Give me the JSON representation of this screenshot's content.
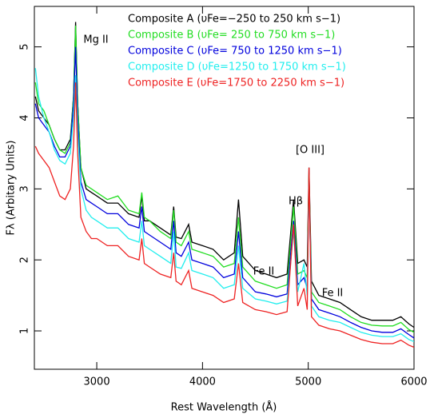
{
  "chart_data": {
    "type": "line",
    "xlabel": "Rest Wavelength (Å)",
    "ylabel": "Fλ (Arbitary Units)",
    "annotations": [
      "Mg II",
      "Fe II",
      "Hβ",
      "[O III]",
      "Fe II"
    ],
    "x": [
      2420,
      2450,
      2500,
      2550,
      2600,
      2650,
      2700,
      2750,
      2780,
      2800,
      2820,
      2850,
      2900,
      2950,
      3000,
      3100,
      3200,
      3300,
      3400,
      3426,
      3450,
      3500,
      3600,
      3700,
      3727,
      3750,
      3800,
      3869,
      3900,
      4000,
      4100,
      4200,
      4300,
      4340,
      4380,
      4500,
      4600,
      4700,
      4800,
      4861,
      4900,
      4959,
      4990,
      5007,
      5030,
      5100,
      5200,
      5300,
      5400,
      5500,
      5600,
      5700,
      5800,
      5876,
      5950,
      6000
    ],
    "series": [
      {
        "name": "Composite A (υFe=−250 to  250 km s−1)",
        "color": "#000000",
        "values": [
          4.3,
          4.1,
          4.0,
          3.9,
          3.7,
          3.55,
          3.55,
          3.7,
          4.3,
          5.35,
          4.2,
          3.3,
          3.0,
          2.95,
          2.9,
          2.8,
          2.8,
          2.65,
          2.6,
          2.9,
          2.55,
          2.55,
          2.45,
          2.35,
          2.75,
          2.32,
          2.3,
          2.5,
          2.25,
          2.2,
          2.15,
          2.0,
          2.1,
          2.85,
          2.05,
          1.85,
          1.8,
          1.75,
          1.8,
          2.85,
          1.95,
          2.0,
          1.9,
          3.3,
          1.7,
          1.5,
          1.45,
          1.4,
          1.3,
          1.2,
          1.15,
          1.15,
          1.15,
          1.2,
          1.1,
          1.05
        ]
      },
      {
        "name": "Composite B (υFe= 250 to  750 km s−1)",
        "color": "#22dd22",
        "values": [
          4.5,
          4.2,
          4.1,
          3.9,
          3.7,
          3.55,
          3.5,
          3.65,
          4.3,
          5.3,
          4.2,
          3.3,
          3.05,
          3.0,
          2.95,
          2.85,
          2.9,
          2.7,
          2.65,
          2.95,
          2.6,
          2.55,
          2.4,
          2.3,
          2.7,
          2.25,
          2.2,
          2.4,
          2.15,
          2.1,
          2.05,
          1.9,
          1.95,
          2.6,
          1.9,
          1.7,
          1.65,
          1.6,
          1.65,
          2.75,
          1.8,
          1.85,
          1.75,
          3.2,
          1.55,
          1.4,
          1.35,
          1.3,
          1.2,
          1.12,
          1.08,
          1.07,
          1.07,
          1.12,
          1.02,
          0.98
        ]
      },
      {
        "name": "Composite C (υFe= 750 to 1250 km s−1)",
        "color": "#0000dd",
        "values": [
          4.2,
          4.0,
          3.9,
          3.8,
          3.6,
          3.45,
          3.45,
          3.6,
          4.2,
          5.0,
          4.0,
          3.1,
          2.85,
          2.8,
          2.75,
          2.65,
          2.65,
          2.5,
          2.45,
          2.75,
          2.4,
          2.35,
          2.25,
          2.15,
          2.55,
          2.1,
          2.05,
          2.25,
          2.0,
          1.95,
          1.9,
          1.75,
          1.8,
          2.4,
          1.75,
          1.55,
          1.52,
          1.48,
          1.52,
          2.55,
          1.65,
          1.75,
          1.6,
          3.1,
          1.45,
          1.3,
          1.25,
          1.2,
          1.12,
          1.05,
          1.0,
          0.98,
          0.98,
          1.03,
          0.95,
          0.9
        ]
      },
      {
        "name": "Composite D (υFe=1250 to 1750 km s−1)",
        "color": "#22eeee",
        "values": [
          4.7,
          4.3,
          4.0,
          3.8,
          3.55,
          3.4,
          3.35,
          3.5,
          4.0,
          4.6,
          3.8,
          3.0,
          2.7,
          2.6,
          2.55,
          2.45,
          2.45,
          2.3,
          2.25,
          2.55,
          2.2,
          2.15,
          2.05,
          1.95,
          2.4,
          1.9,
          1.88,
          2.1,
          1.85,
          1.8,
          1.75,
          1.6,
          1.65,
          2.2,
          1.6,
          1.45,
          1.42,
          1.38,
          1.42,
          2.4,
          1.55,
          1.95,
          1.5,
          3.1,
          1.35,
          1.2,
          1.15,
          1.12,
          1.05,
          0.98,
          0.94,
          0.92,
          0.92,
          0.96,
          0.88,
          0.85
        ]
      },
      {
        "name": "Composite E (υFe=1750 to 2250 km s−1)",
        "color": "#ee2222",
        "values": [
          3.6,
          3.5,
          3.4,
          3.3,
          3.1,
          2.9,
          2.85,
          3.0,
          3.6,
          4.5,
          3.5,
          2.6,
          2.4,
          2.3,
          2.3,
          2.2,
          2.2,
          2.05,
          2.0,
          2.3,
          1.95,
          1.9,
          1.8,
          1.75,
          2.1,
          1.7,
          1.65,
          1.85,
          1.6,
          1.55,
          1.5,
          1.4,
          1.45,
          1.95,
          1.4,
          1.3,
          1.27,
          1.23,
          1.27,
          2.5,
          1.35,
          1.6,
          1.3,
          3.3,
          1.2,
          1.08,
          1.03,
          1.0,
          0.94,
          0.88,
          0.84,
          0.82,
          0.82,
          0.87,
          0.8,
          0.77
        ]
      }
    ],
    "xlim": [
      2410,
      6000
    ],
    "ylim": [
      0.46,
      5.57
    ],
    "xticks": [
      3000,
      4000,
      5000,
      6000
    ],
    "yticks": [
      1,
      2,
      3,
      4,
      5
    ]
  }
}
